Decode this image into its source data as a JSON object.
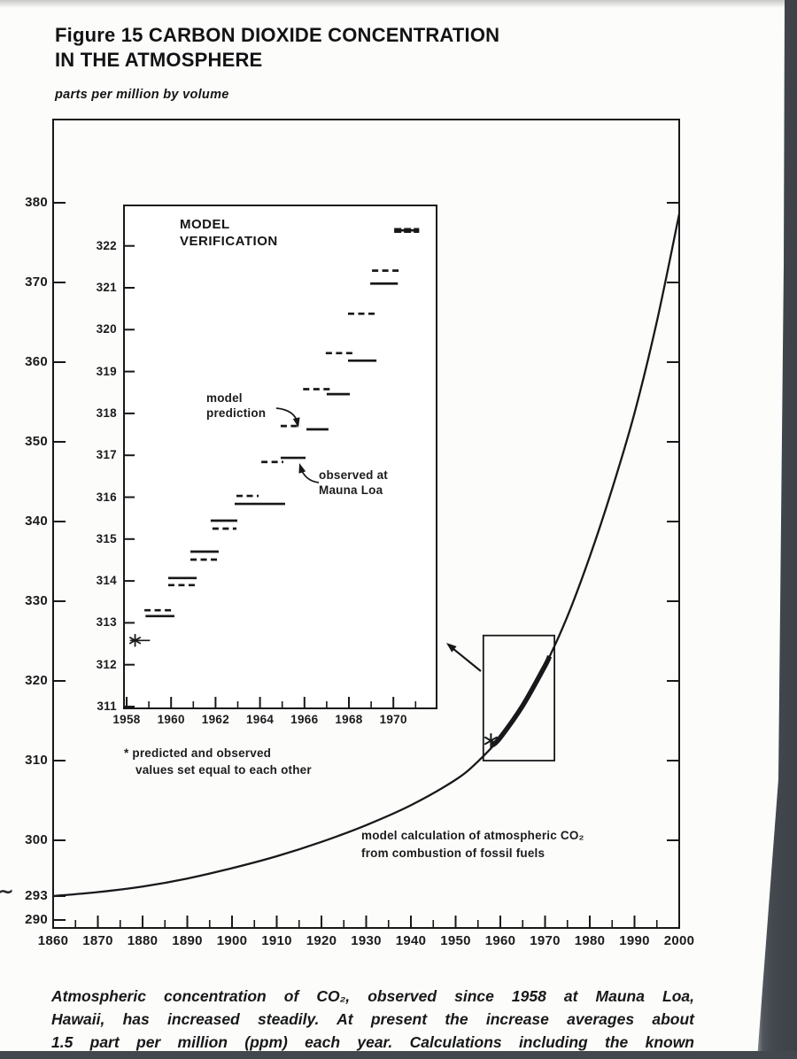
{
  "page": {
    "background": "#fcfcfa",
    "artifact_color": "#43484e",
    "title_line1": "Figure 15 CARBON DIOXIDE CONCENTRATION",
    "title_line2": "IN THE ATMOSPHERE",
    "units_label": "parts per million by volume",
    "scan_mark": "∼",
    "caption_lines": [
      "Atmospheric concentration of CO₂, observed since 1958 at Mauna Loa,",
      "Hawaii, has increased steadily. At present the increase averages about",
      "1.5 part per million (ppm) each year. Calculations including the known"
    ]
  },
  "chart_data": [
    {
      "type": "line",
      "title": "Figure 15 Carbon Dioxide Concentration in the Atmosphere",
      "xlabel": "",
      "ylabel": "parts per million by volume",
      "xlim": [
        1860,
        2000
      ],
      "ylim": [
        289,
        391
      ],
      "grid": false,
      "x_ticks_major": [
        1860,
        1870,
        1880,
        1890,
        1900,
        1910,
        1920,
        1930,
        1940,
        1950,
        1960,
        1970,
        1980,
        1990,
        2000
      ],
      "x_ticks_minor": [
        1865,
        1875,
        1885,
        1895,
        1905,
        1915,
        1925,
        1935,
        1945,
        1955,
        1965,
        1975,
        1985,
        1995
      ],
      "y_ticks_left": [
        290,
        293,
        300,
        310,
        320,
        330,
        340,
        350,
        360,
        370,
        380
      ],
      "y_ticks_right": [
        300,
        310,
        320,
        330,
        340,
        350,
        360,
        370,
        380
      ],
      "series": [
        {
          "name": "model calculation of atmospheric CO₂ from combustion of fossil fuels",
          "style": "thin",
          "points": [
            [
              1860,
              293
            ],
            [
              1870,
              293.5
            ],
            [
              1880,
              294.2
            ],
            [
              1890,
              295.2
            ],
            [
              1900,
              296.5
            ],
            [
              1910,
              298.0
            ],
            [
              1920,
              299.8
            ],
            [
              1930,
              301.9
            ],
            [
              1940,
              304.4
            ],
            [
              1950,
              307.6
            ],
            [
              1955,
              309.9
            ],
            [
              1960,
              312.9
            ],
            [
              1965,
              316.9
            ],
            [
              1970,
              321.9
            ],
            [
              1975,
              328.1
            ],
            [
              1980,
              335.6
            ],
            [
              1985,
              344.1
            ],
            [
              1990,
              353.6
            ],
            [
              1995,
              365.1
            ],
            [
              2000,
              378.6
            ]
          ]
        },
        {
          "name": "observed at Mauna Loa (bold overlay 1958-1971)",
          "style": "bold",
          "points": [
            [
              1958.2,
              311.9
            ],
            [
              1960,
              312.9
            ],
            [
              1965,
              316.9
            ],
            [
              1970,
              321.9
            ],
            [
              1971,
              323.1
            ]
          ]
        }
      ],
      "annotations": {
        "model_calc_line1": "model calculation of atmospheric CO₂",
        "model_calc_line2": "from combustion of fossil fuels",
        "asterisk": [
          1957.9,
          312.5
        ],
        "zoom_box": {
          "x0": 1956.2,
          "x1": 1972.1,
          "y0": 310.0,
          "y1": 325.7
        }
      }
    },
    {
      "type": "line-segments",
      "title": "MODEL\nVERIFICATION",
      "xlim": [
        1957.88,
        1971.94
      ],
      "ylim": [
        311,
        322.97
      ],
      "grid": false,
      "x_ticks_major": [
        1958,
        1960,
        1962,
        1964,
        1966,
        1968,
        1970
      ],
      "x_ticks_minor": [
        1959,
        1961,
        1963,
        1965,
        1967,
        1969,
        1971
      ],
      "y_ticks": [
        311,
        312,
        313,
        314,
        315,
        316,
        317,
        318,
        319,
        320,
        321,
        322
      ],
      "legend": {
        "dashed": "model prediction",
        "solid": "observed at Mauna Loa"
      },
      "segments": [
        {
          "style": "asterisk",
          "x0": 1958.15,
          "x1": 1959.05,
          "y": 312.58
        },
        {
          "style": "dashed",
          "x0": 1958.8,
          "x1": 1960.15,
          "y": 313.3
        },
        {
          "style": "solid",
          "x0": 1958.85,
          "x1": 1960.15,
          "y": 313.16
        },
        {
          "style": "solid",
          "x0": 1959.87,
          "x1": 1961.15,
          "y": 314.07
        },
        {
          "style": "dashed",
          "x0": 1959.87,
          "x1": 1961.15,
          "y": 313.9
        },
        {
          "style": "solid",
          "x0": 1960.87,
          "x1": 1962.14,
          "y": 314.7
        },
        {
          "style": "dashed",
          "x0": 1960.87,
          "x1": 1962.1,
          "y": 314.51
        },
        {
          "style": "solid",
          "x0": 1961.78,
          "x1": 1962.98,
          "y": 315.44
        },
        {
          "style": "dashed",
          "x0": 1961.86,
          "x1": 1962.94,
          "y": 315.25
        },
        {
          "style": "dashed",
          "x0": 1962.94,
          "x1": 1963.94,
          "y": 316.03
        },
        {
          "style": "solid",
          "x0": 1962.86,
          "x1": 1965.13,
          "y": 315.84
        },
        {
          "style": "dashed",
          "x0": 1964.06,
          "x1": 1965.05,
          "y": 316.84
        },
        {
          "style": "solid",
          "x0": 1964.93,
          "x1": 1966.05,
          "y": 316.94
        },
        {
          "style": "dashed",
          "x0": 1964.93,
          "x1": 1965.85,
          "y": 317.7
        },
        {
          "style": "solid",
          "x0": 1966.09,
          "x1": 1967.08,
          "y": 317.62
        },
        {
          "style": "dashed",
          "x0": 1965.94,
          "x1": 1967.16,
          "y": 318.58
        },
        {
          "style": "solid",
          "x0": 1967.0,
          "x1": 1968.04,
          "y": 318.46
        },
        {
          "style": "dashed",
          "x0": 1966.96,
          "x1": 1968.16,
          "y": 319.44
        },
        {
          "style": "solid",
          "x0": 1967.96,
          "x1": 1969.24,
          "y": 319.26
        },
        {
          "style": "dashed",
          "x0": 1967.96,
          "x1": 1969.16,
          "y": 320.38
        },
        {
          "style": "solid",
          "x0": 1968.96,
          "x1": 1970.2,
          "y": 321.1
        },
        {
          "style": "dashed",
          "x0": 1969.04,
          "x1": 1970.24,
          "y": 321.41
        },
        {
          "style": "merged",
          "x0": 1970.04,
          "x1": 1971.16,
          "y": 322.37
        }
      ],
      "annotations": {
        "model_prediction": "model\nprediction",
        "observed": "observed at\nMauna Loa",
        "footnote_line1": "* predicted and observed",
        "footnote_line2": "values set equal to each other",
        "start_asterisk": [
          1958.38,
          312.58
        ]
      }
    }
  ]
}
